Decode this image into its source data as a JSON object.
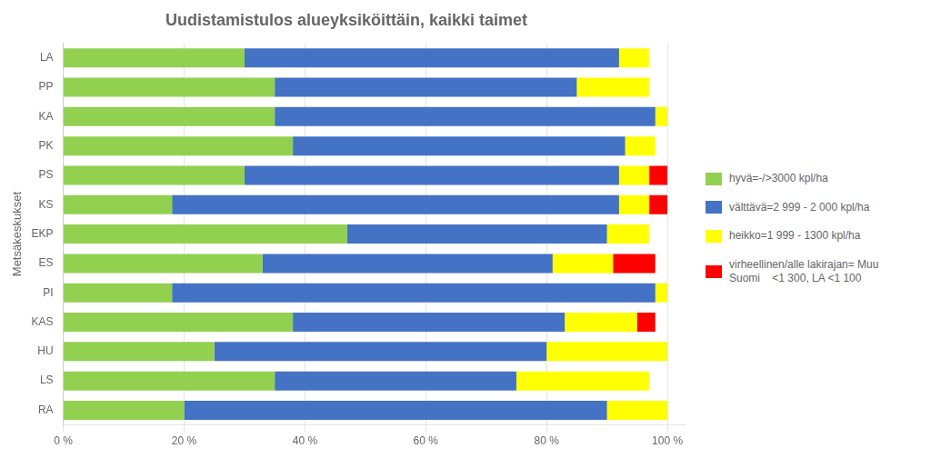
{
  "chart_data": {
    "type": "bar",
    "orientation": "horizontal",
    "stacked": true,
    "title": "Uudistamistulos alueyksiköittäin, kaikki taimet",
    "ylabel": "Metsäkeskukset",
    "categories": [
      "LA",
      "PP",
      "KA",
      "PK",
      "PS",
      "KS",
      "EKP",
      "ES",
      "PI",
      "KAS",
      "HU",
      "LS",
      "RA"
    ],
    "series": [
      {
        "name": "hyvä=-/>3000 kpl/ha",
        "color": "#92D050",
        "values": [
          30,
          35,
          35,
          38,
          30,
          18,
          47,
          33,
          18,
          38,
          25,
          35,
          20
        ]
      },
      {
        "name": "välttävä=2 999 - 2 000 kpl/ha",
        "color": "#4472C4",
        "values": [
          62,
          50,
          63,
          55,
          62,
          74,
          43,
          48,
          80,
          45,
          55,
          40,
          70
        ]
      },
      {
        "name": "heikko=1 999 - 1300 kpl/ha",
        "color": "#FFFF00",
        "values": [
          5,
          12,
          2,
          5,
          5,
          5,
          7,
          10,
          2,
          12,
          20,
          22,
          10
        ]
      },
      {
        "name": "virheellinen/alle lakirajan= Muu\nSuomi    <1 300, LA <1 100",
        "color": "#FF0000",
        "values": [
          0,
          0,
          0,
          0,
          3,
          3,
          0,
          7,
          0,
          3,
          0,
          0,
          0
        ]
      }
    ],
    "xlim": [
      0,
      103
    ],
    "xticks": [
      {
        "value": 0,
        "label": "0 %"
      },
      {
        "value": 20,
        "label": "20 %"
      },
      {
        "value": 40,
        "label": "40 %"
      },
      {
        "value": 60,
        "label": "60 %"
      },
      {
        "value": 80,
        "label": "80 %"
      },
      {
        "value": 100,
        "label": "100 %"
      }
    ],
    "grid": true,
    "legend": "right"
  }
}
